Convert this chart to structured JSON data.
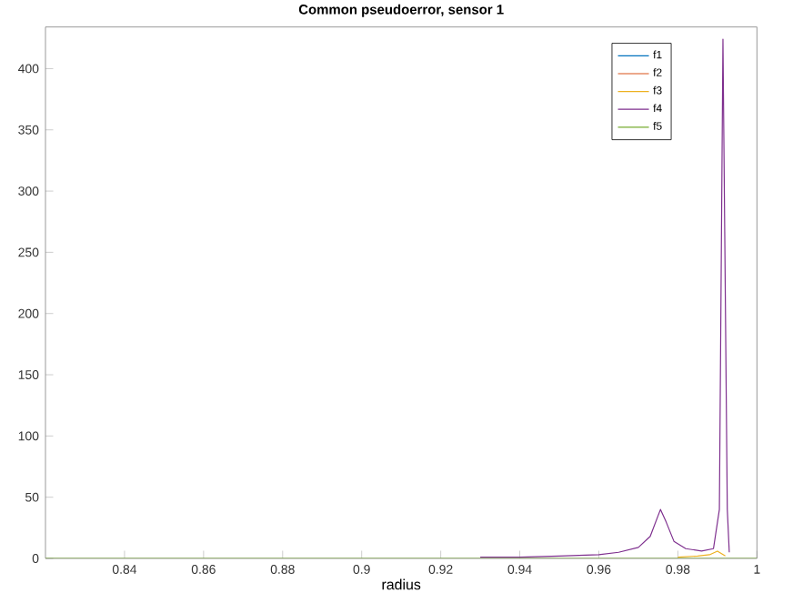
{
  "chart_data": {
    "type": "line",
    "title": "Common pseudoerror, sensor 1",
    "xlabel": "radius",
    "xlim": [
      0.82,
      1
    ],
    "xticks": [
      0.84,
      0.86,
      0.88,
      0.9,
      0.92,
      0.94,
      0.96,
      0.98,
      1
    ],
    "ylim": [
      0,
      434
    ],
    "yticks": [
      0,
      50,
      100,
      150,
      200,
      250,
      300,
      350,
      400
    ],
    "legend": "top right",
    "marker": "none",
    "line_style": "solid",
    "grid": false,
    "series": [
      {
        "name": "f1",
        "color": "#0072bd"
      },
      {
        "name": "f2",
        "color": "#d95319"
      },
      {
        "name": "f3",
        "color": "#edb120",
        "x": [
          0.98,
          0.985,
          0.988,
          0.99,
          0.992
        ],
        "values": [
          1,
          2,
          3,
          6,
          2
        ]
      },
      {
        "name": "f4",
        "color": "#7e2f8e",
        "x": [
          0.93,
          0.94,
          0.95,
          0.96,
          0.965,
          0.97,
          0.973,
          0.975,
          0.9756,
          0.977,
          0.979,
          0.982,
          0.986,
          0.989,
          0.9905,
          0.9914,
          0.9925,
          0.993
        ],
        "values": [
          1,
          1,
          2,
          3,
          5,
          9,
          18,
          35,
          40,
          30,
          14,
          8,
          6,
          8,
          40,
          424,
          40,
          5
        ]
      },
      {
        "name": "f5",
        "color": "#77ac30",
        "x": [
          0.82,
          0.9,
          0.95,
          1
        ],
        "values": [
          0,
          0,
          0,
          0
        ]
      }
    ]
  }
}
